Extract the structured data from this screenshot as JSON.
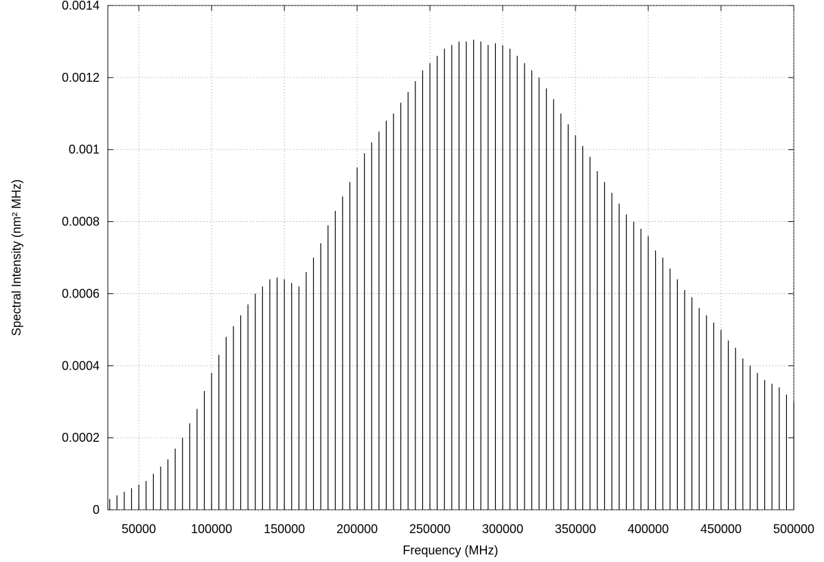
{
  "chart_data": {
    "type": "impulses",
    "x_label": "Frequency (MHz)",
    "y_label": "Spectral Intensity (nm² MHz)",
    "x": [
      30000,
      35000,
      40000,
      45000,
      50000,
      55000,
      60000,
      65000,
      70000,
      75000,
      80000,
      85000,
      90000,
      95000,
      100000,
      105000,
      110000,
      115000,
      120000,
      125000,
      130000,
      135000,
      140000,
      145000,
      150000,
      155000,
      160000,
      165000,
      170000,
      175000,
      180000,
      185000,
      190000,
      195000,
      200000,
      205000,
      210000,
      215000,
      220000,
      225000,
      230000,
      235000,
      240000,
      245000,
      250000,
      255000,
      260000,
      265000,
      270000,
      275000,
      280000,
      285000,
      290000,
      295000,
      300000,
      305000,
      310000,
      315000,
      320000,
      325000,
      330000,
      335000,
      340000,
      345000,
      350000,
      355000,
      360000,
      365000,
      370000,
      375000,
      380000,
      385000,
      390000,
      395000,
      400000,
      405000,
      410000,
      415000,
      420000,
      425000,
      430000,
      435000,
      440000,
      445000,
      450000,
      455000,
      460000,
      465000,
      470000,
      475000,
      480000,
      485000,
      490000,
      495000,
      500000
    ],
    "values": [
      3e-05,
      4e-05,
      5e-05,
      6e-05,
      7e-05,
      8e-05,
      0.0001,
      0.00012,
      0.00014,
      0.00017,
      0.0002,
      0.00024,
      0.00028,
      0.00033,
      0.00038,
      0.00043,
      0.00048,
      0.00051,
      0.00054,
      0.00057,
      0.0006,
      0.00062,
      0.00064,
      0.000645,
      0.00064,
      0.00063,
      0.00062,
      0.00066,
      0.0007,
      0.00074,
      0.00079,
      0.00083,
      0.00087,
      0.00091,
      0.00095,
      0.00099,
      0.00102,
      0.00105,
      0.00108,
      0.0011,
      0.00113,
      0.00116,
      0.00119,
      0.00122,
      0.00124,
      0.00126,
      0.00128,
      0.00129,
      0.0013,
      0.0013,
      0.001305,
      0.0013,
      0.00129,
      0.001295,
      0.00129,
      0.00128,
      0.00126,
      0.00124,
      0.00122,
      0.0012,
      0.00117,
      0.00114,
      0.0011,
      0.00107,
      0.00104,
      0.00101,
      0.00098,
      0.00094,
      0.00091,
      0.00088,
      0.00085,
      0.00082,
      0.0008,
      0.00078,
      0.00076,
      0.00072,
      0.0007,
      0.00067,
      0.00064,
      0.00061,
      0.00059,
      0.00056,
      0.00054,
      0.00052,
      0.0005,
      0.00047,
      0.00045,
      0.00042,
      0.0004,
      0.00038,
      0.00036,
      0.00035,
      0.00034,
      0.00032,
      0.0003
    ],
    "color": "#000000",
    "xlim": [
      28700,
      500000
    ],
    "xticks": [
      50000,
      100000,
      150000,
      200000,
      250000,
      300000,
      350000,
      400000,
      450000,
      500000
    ],
    "ylim": [
      0,
      0.0014
    ],
    "yticks": [
      0,
      0.0002,
      0.0004,
      0.0006,
      0.0008,
      0.001,
      0.0012,
      0.0014
    ],
    "grid": true
  }
}
